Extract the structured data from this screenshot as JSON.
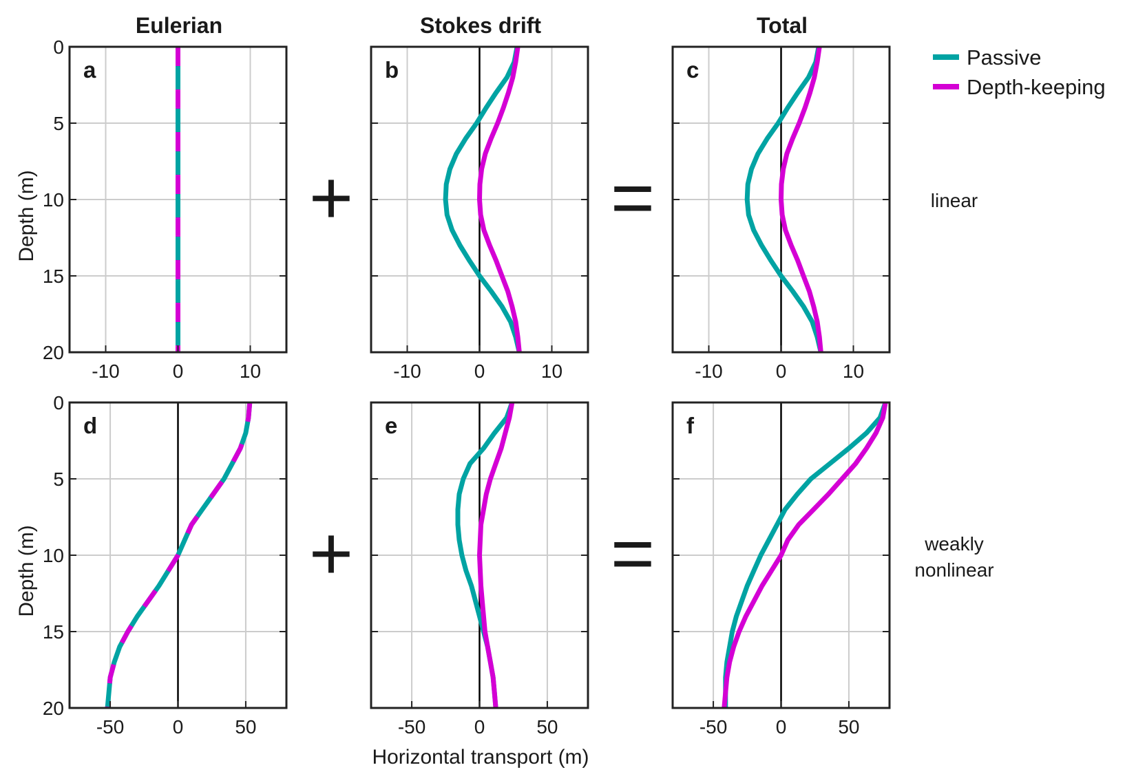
{
  "colors": {
    "passive": "#00A3A3",
    "depth_keeping": "#D400D4",
    "axis": "#222222",
    "grid": "#cccccc",
    "zero_line": "#000000"
  },
  "columns": {
    "eulerian": "Eulerian",
    "stokes": "Stokes drift",
    "total": "Total"
  },
  "operators": {
    "plus": "+",
    "equals": "="
  },
  "rows": {
    "row1": "linear",
    "row2_line1": "weakly",
    "row2_line2": "nonlinear"
  },
  "axes": {
    "ylabel": "Depth (m)",
    "xlabel": "Horizontal transport (m)"
  },
  "legend": {
    "passive": "Passive",
    "depth_keeping": "Depth-keeping"
  },
  "chart_data": [
    {
      "panel": "a",
      "type": "line",
      "column": "Eulerian",
      "row": "linear",
      "xlim": [
        -15,
        15
      ],
      "ylim": [
        0,
        20
      ],
      "xticks": [
        "-10",
        "0",
        "10"
      ],
      "yticks": [
        "0",
        "5",
        "10",
        "15",
        "20"
      ],
      "grid": true,
      "zero_line": false,
      "dashed_overlap": true,
      "series": [
        {
          "name": "Passive",
          "depth": [
            0,
            20
          ],
          "transport": [
            0,
            0
          ]
        },
        {
          "name": "Depth-keeping",
          "depth": [
            0,
            20
          ],
          "transport": [
            0,
            0
          ]
        }
      ]
    },
    {
      "panel": "b",
      "type": "line",
      "column": "Stokes drift",
      "row": "linear",
      "xlim": [
        -15,
        15
      ],
      "ylim": [
        0,
        20
      ],
      "xticks": [
        "-10",
        "0",
        "10"
      ],
      "yticks": [
        "0",
        "5",
        "10",
        "15",
        "20"
      ],
      "grid": true,
      "zero_line": true,
      "dashed_overlap": false,
      "series": [
        {
          "name": "Passive",
          "depth": [
            0,
            1,
            2,
            3,
            4,
            5,
            6,
            7,
            8,
            9,
            10,
            11,
            12,
            13,
            14,
            15,
            16,
            17,
            18,
            19,
            20
          ],
          "transport": [
            5.2,
            4.8,
            3.8,
            2.3,
            0.9,
            -0.4,
            -1.9,
            -3.2,
            -4.1,
            -4.6,
            -4.7,
            -4.5,
            -3.8,
            -2.7,
            -1.4,
            0,
            1.6,
            3.1,
            4.3,
            5.0,
            5.5
          ]
        },
        {
          "name": "Depth-keeping",
          "depth": [
            0,
            1,
            2,
            3,
            4,
            5,
            6,
            7,
            8,
            9,
            10,
            11,
            12,
            13,
            14,
            15,
            16,
            17,
            18,
            19,
            20
          ],
          "transport": [
            5.3,
            5.0,
            4.6,
            4.0,
            3.3,
            2.5,
            1.6,
            0.8,
            0.3,
            0.05,
            0.0,
            0.15,
            0.6,
            1.4,
            2.3,
            3.1,
            3.9,
            4.5,
            5.0,
            5.3,
            5.5
          ]
        }
      ]
    },
    {
      "panel": "c",
      "type": "line",
      "column": "Total",
      "row": "linear",
      "xlim": [
        -15,
        15
      ],
      "ylim": [
        0,
        20
      ],
      "xticks": [
        "-10",
        "0",
        "10"
      ],
      "yticks": [
        "0",
        "5",
        "10",
        "15",
        "20"
      ],
      "grid": true,
      "zero_line": true,
      "dashed_overlap": false,
      "series": [
        {
          "name": "Passive",
          "depth": [
            0,
            1,
            2,
            3,
            4,
            5,
            6,
            7,
            8,
            9,
            10,
            11,
            12,
            13,
            14,
            15,
            16,
            17,
            18,
            19,
            20
          ],
          "transport": [
            5.2,
            4.8,
            3.8,
            2.3,
            0.9,
            -0.4,
            -1.9,
            -3.2,
            -4.1,
            -4.6,
            -4.7,
            -4.5,
            -3.8,
            -2.7,
            -1.4,
            0,
            1.6,
            3.1,
            4.3,
            5.0,
            5.5
          ]
        },
        {
          "name": "Depth-keeping",
          "depth": [
            0,
            1,
            2,
            3,
            4,
            5,
            6,
            7,
            8,
            9,
            10,
            11,
            12,
            13,
            14,
            15,
            16,
            17,
            18,
            19,
            20
          ],
          "transport": [
            5.3,
            5.0,
            4.6,
            4.0,
            3.3,
            2.5,
            1.6,
            0.8,
            0.3,
            0.05,
            0.0,
            0.15,
            0.6,
            1.4,
            2.3,
            3.1,
            3.9,
            4.5,
            5.0,
            5.3,
            5.5
          ]
        }
      ]
    },
    {
      "panel": "d",
      "type": "line",
      "column": "Eulerian",
      "row": "weakly nonlinear",
      "xlim": [
        -80,
        80
      ],
      "ylim": [
        0,
        20
      ],
      "xticks": [
        "-50",
        "0",
        "50"
      ],
      "yticks": [
        "0",
        "5",
        "10",
        "15",
        "20"
      ],
      "grid": true,
      "zero_line": true,
      "dashed_overlap": true,
      "series": [
        {
          "name": "Passive",
          "depth": [
            0,
            1,
            2,
            3,
            4,
            5,
            6,
            7,
            8,
            9,
            10,
            11,
            12,
            13,
            14,
            15,
            16,
            17,
            18,
            19,
            20
          ],
          "transport": [
            53,
            52,
            50,
            46,
            40,
            34,
            26,
            18,
            10,
            5,
            0,
            -7,
            -14,
            -22,
            -30,
            -37,
            -43,
            -47,
            -50,
            -51,
            -52
          ]
        },
        {
          "name": "Depth-keeping",
          "depth": [
            0,
            1,
            2,
            3,
            4,
            5,
            6,
            7,
            8,
            9,
            10,
            11,
            12,
            13,
            14,
            15,
            16,
            17,
            18,
            19,
            20
          ],
          "transport": [
            53,
            52,
            50,
            46,
            40,
            34,
            26,
            18,
            10,
            5,
            0,
            -7,
            -14,
            -22,
            -30,
            -37,
            -43,
            -47,
            -50,
            -51,
            -52
          ]
        }
      ]
    },
    {
      "panel": "e",
      "type": "line",
      "column": "Stokes drift",
      "row": "weakly nonlinear",
      "xlim": [
        -80,
        80
      ],
      "ylim": [
        0,
        20
      ],
      "xticks": [
        "-50",
        "0",
        "50"
      ],
      "yticks": [
        "0",
        "5",
        "10",
        "15",
        "20"
      ],
      "grid": true,
      "zero_line": true,
      "dashed_overlap": false,
      "series": [
        {
          "name": "Passive",
          "depth": [
            0,
            1,
            2,
            3,
            4,
            5,
            6,
            7,
            8,
            9,
            10,
            11,
            12,
            13,
            14,
            15,
            16,
            17,
            18,
            19,
            20
          ],
          "transport": [
            24,
            20,
            11,
            3,
            -7,
            -12,
            -15,
            -16,
            -16,
            -15,
            -13,
            -10,
            -6,
            -3,
            0,
            3,
            6,
            8,
            10,
            11,
            12
          ]
        },
        {
          "name": "Depth-keeping",
          "depth": [
            0,
            1,
            2,
            3,
            4,
            5,
            6,
            7,
            8,
            9,
            10,
            11,
            12,
            13,
            14,
            15,
            16,
            17,
            18,
            19,
            20
          ],
          "transport": [
            24,
            22,
            19,
            16,
            12,
            8,
            5,
            3,
            1,
            0.5,
            0,
            0.5,
            1,
            2,
            3,
            4,
            6,
            8,
            10,
            11,
            12
          ]
        }
      ]
    },
    {
      "panel": "f",
      "type": "line",
      "column": "Total",
      "row": "weakly nonlinear",
      "xlim": [
        -80,
        80
      ],
      "ylim": [
        0,
        20
      ],
      "xticks": [
        "-50",
        "0",
        "50"
      ],
      "yticks": [
        "0",
        "5",
        "10",
        "15",
        "20"
      ],
      "grid": true,
      "zero_line": true,
      "dashed_overlap": false,
      "series": [
        {
          "name": "Passive",
          "depth": [
            0,
            1,
            2,
            3,
            4,
            5,
            6,
            7,
            8,
            9,
            10,
            11,
            12,
            13,
            14,
            15,
            16,
            17,
            18,
            19,
            20
          ],
          "transport": [
            77,
            73,
            63,
            50,
            36,
            22,
            12,
            3,
            -3,
            -9,
            -15,
            -20,
            -25,
            -29,
            -33,
            -36,
            -38,
            -40,
            -41,
            -41,
            -41
          ]
        },
        {
          "name": "Depth-keeping",
          "depth": [
            0,
            1,
            2,
            3,
            4,
            5,
            6,
            7,
            8,
            9,
            10,
            11,
            12,
            13,
            14,
            15,
            16,
            17,
            18,
            19,
            20
          ],
          "transport": [
            77,
            75,
            70,
            63,
            55,
            45,
            35,
            24,
            13,
            5,
            0,
            -7,
            -14,
            -20,
            -26,
            -31,
            -35,
            -38,
            -40,
            -41,
            -42
          ]
        }
      ]
    }
  ]
}
